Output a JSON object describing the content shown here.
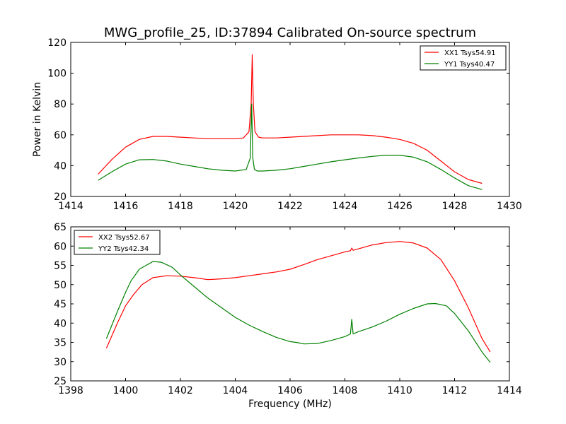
{
  "chart_data": [
    {
      "type": "line",
      "title": "MWG_profile_25, ID:37894 Calibrated On-source spectrum",
      "xlabel": "",
      "ylabel": "Power in Kelvin",
      "xlim": [
        1414,
        1430
      ],
      "ylim": [
        20,
        120
      ],
      "xticks": [
        1414,
        1416,
        1418,
        1420,
        1422,
        1424,
        1426,
        1428,
        1430
      ],
      "yticks": [
        20,
        40,
        60,
        80,
        100,
        120
      ],
      "legend": "top-right",
      "series": [
        {
          "name": "XX1 Tsys54.91",
          "color": "#ff0000",
          "x": [
            1415.0,
            1415.5,
            1416.0,
            1416.5,
            1417.0,
            1417.5,
            1418.0,
            1418.5,
            1419.0,
            1419.5,
            1420.0,
            1420.3,
            1420.5,
            1420.58,
            1420.62,
            1420.66,
            1420.72,
            1420.85,
            1421.0,
            1421.5,
            1422.0,
            1422.5,
            1423.0,
            1423.5,
            1424.0,
            1424.5,
            1425.0,
            1425.5,
            1426.0,
            1426.5,
            1427.0,
            1427.5,
            1428.0,
            1428.5,
            1429.0
          ],
          "y": [
            34.5,
            44.0,
            52.0,
            57.0,
            59.0,
            59.0,
            58.5,
            58.0,
            57.5,
            57.5,
            57.5,
            58.0,
            62.0,
            80.0,
            112.0,
            80.0,
            62.0,
            58.5,
            58.0,
            58.0,
            58.5,
            59.0,
            59.5,
            60.0,
            60.0,
            60.0,
            59.5,
            58.5,
            57.0,
            54.5,
            50.0,
            43.0,
            36.0,
            31.0,
            28.5
          ]
        },
        {
          "name": "YY1 Tsys40.47",
          "color": "#008000",
          "x": [
            1415.0,
            1415.5,
            1416.0,
            1416.5,
            1417.0,
            1417.5,
            1418.0,
            1418.5,
            1419.0,
            1419.5,
            1420.0,
            1420.4,
            1420.55,
            1420.6,
            1420.64,
            1420.7,
            1420.8,
            1421.0,
            1421.5,
            1422.0,
            1422.5,
            1423.0,
            1423.5,
            1424.0,
            1424.5,
            1425.0,
            1425.5,
            1426.0,
            1426.5,
            1427.0,
            1427.5,
            1428.0,
            1428.5,
            1429.0
          ],
          "y": [
            30.5,
            36.0,
            41.0,
            43.8,
            44.0,
            43.0,
            41.0,
            39.5,
            38.0,
            37.0,
            36.5,
            37.5,
            45.0,
            80.0,
            45.0,
            37.5,
            36.5,
            36.5,
            37.0,
            38.0,
            39.5,
            41.0,
            42.5,
            43.8,
            45.0,
            46.0,
            46.8,
            46.8,
            45.5,
            42.5,
            37.5,
            32.0,
            27.0,
            24.5
          ]
        }
      ]
    },
    {
      "type": "line",
      "title": "",
      "xlabel": "Frequency (MHz)",
      "ylabel": "",
      "xlim": [
        1398,
        1414
      ],
      "ylim": [
        25,
        65
      ],
      "xticks": [
        1398,
        1400,
        1402,
        1404,
        1406,
        1408,
        1410,
        1412,
        1414
      ],
      "yticks": [
        25,
        30,
        35,
        40,
        45,
        50,
        55,
        60,
        65
      ],
      "legend": "top-left",
      "series": [
        {
          "name": "XX2 Tsys52.67",
          "color": "#ff0000",
          "x": [
            1399.3,
            1399.7,
            1400.0,
            1400.3,
            1400.6,
            1401.0,
            1401.5,
            1402.0,
            1402.5,
            1403.0,
            1403.5,
            1404.0,
            1404.5,
            1405.0,
            1405.5,
            1406.0,
            1406.5,
            1407.0,
            1407.5,
            1408.0,
            1408.2,
            1408.25,
            1408.3,
            1408.5,
            1409.0,
            1409.5,
            1410.0,
            1410.5,
            1411.0,
            1411.5,
            1412.0,
            1412.5,
            1413.0,
            1413.3
          ],
          "y": [
            33.5,
            40.0,
            44.5,
            47.5,
            50.0,
            51.8,
            52.3,
            52.2,
            51.8,
            51.3,
            51.5,
            51.8,
            52.3,
            52.8,
            53.3,
            54.0,
            55.2,
            56.5,
            57.5,
            58.5,
            58.8,
            59.5,
            58.9,
            59.3,
            60.3,
            60.9,
            61.2,
            60.8,
            59.5,
            56.5,
            51.0,
            44.0,
            36.0,
            32.5
          ]
        },
        {
          "name": "YY2 Tsys42.34",
          "color": "#008000",
          "x": [
            1399.3,
            1399.7,
            1400.0,
            1400.2,
            1400.5,
            1401.0,
            1401.3,
            1401.7,
            1402.0,
            1402.5,
            1403.0,
            1403.5,
            1404.0,
            1404.5,
            1405.0,
            1405.5,
            1406.0,
            1406.3,
            1406.5,
            1407.0,
            1407.5,
            1408.0,
            1408.2,
            1408.25,
            1408.3,
            1408.5,
            1409.0,
            1409.5,
            1410.0,
            1410.5,
            1411.0,
            1411.3,
            1411.7,
            1412.0,
            1412.5,
            1413.0,
            1413.3
          ],
          "y": [
            36.0,
            43.0,
            48.0,
            51.0,
            54.0,
            56.0,
            55.8,
            54.5,
            52.5,
            49.5,
            46.5,
            44.0,
            41.5,
            39.5,
            37.8,
            36.3,
            35.2,
            34.9,
            34.6,
            34.7,
            35.5,
            36.5,
            37.2,
            41.0,
            37.2,
            37.8,
            39.0,
            40.5,
            42.3,
            43.8,
            45.0,
            45.1,
            44.5,
            42.5,
            38.0,
            32.5,
            29.8
          ]
        }
      ]
    }
  ]
}
